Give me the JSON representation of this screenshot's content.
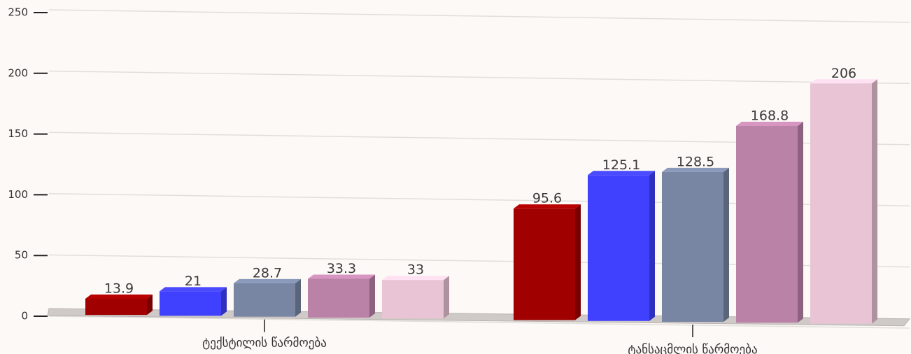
{
  "chart_data": {
    "type": "bar",
    "categories": [
      "ტექსტილის წარმოება",
      "ტანსაცმლის წარმოება"
    ],
    "series": [
      {
        "color": "#a00000",
        "values": [
          13.9,
          95.6
        ]
      },
      {
        "color": "#4040ff",
        "values": [
          21,
          125.1
        ]
      },
      {
        "color": "#7986a3",
        "values": [
          28.7,
          128.5
        ]
      },
      {
        "color": "#bb82a8",
        "values": [
          33.3,
          168.8
        ]
      },
      {
        "color": "#e8c4d4",
        "values": [
          33,
          206
        ]
      }
    ],
    "ylim": [
      0,
      250
    ],
    "yticks": [
      0,
      50,
      100,
      150,
      200,
      250
    ],
    "grid": true
  }
}
